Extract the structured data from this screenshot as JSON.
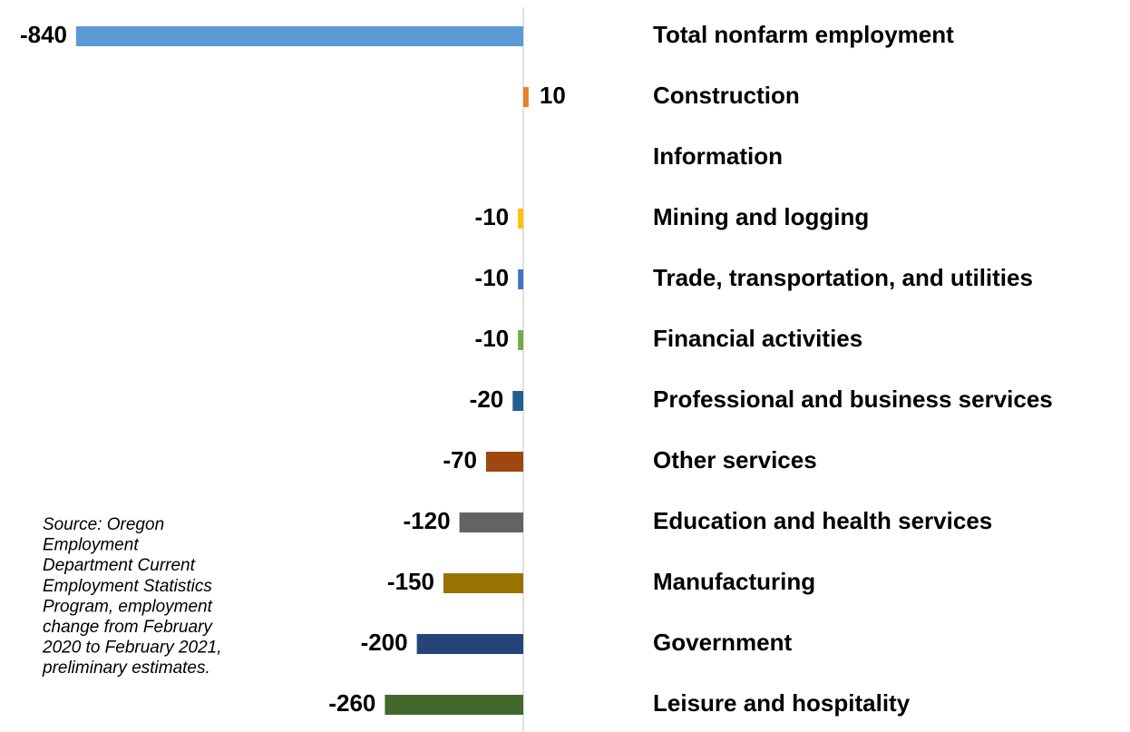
{
  "chart_data": {
    "type": "barh",
    "categories": [
      "Total nonfarm employment",
      "Construction",
      "Information",
      "Mining and logging",
      "Trade, transportation, and utilities",
      "Financial activities",
      "Professional and business services",
      "Other services",
      "Education and health services",
      "Manufacturing",
      "Government",
      "Leisure and hospitality"
    ],
    "values": [
      -840,
      10,
      null,
      -10,
      -10,
      -10,
      -20,
      -70,
      -120,
      -150,
      -200,
      -260
    ],
    "colors": [
      "#5b9bd5",
      "#ed7d31",
      "#a5a5a5",
      "#ffc000",
      "#4472c4",
      "#70ad47",
      "#255e91",
      "#9e480e",
      "#636363",
      "#997300",
      "#264478",
      "#43682b"
    ],
    "xlim": [
      -840,
      200
    ],
    "annotation_lines": [
      "Source: Oregon",
      "Employment",
      "Department Current",
      "Employment Statistics",
      "Program, employment",
      "change from February",
      "2020 to February 2021,",
      "preliminary estimates."
    ]
  }
}
